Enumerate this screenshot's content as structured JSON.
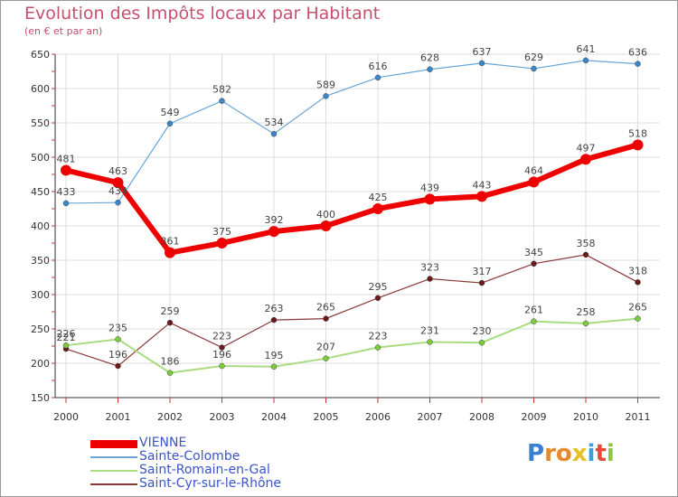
{
  "title": "Evolution des Impôts locaux par Habitant",
  "subtitle": "(en € et par an)",
  "logo": {
    "letters": [
      "P",
      "r",
      "o",
      "x",
      "i",
      "t",
      "i"
    ],
    "colors": [
      "#3a7fd0",
      "#e8882a",
      "#e8882a",
      "#e8c020",
      "#3aa0d8",
      "#e84a3a",
      "#8cc63e"
    ]
  },
  "chart_data": {
    "type": "line",
    "title": "Evolution des Impôts locaux par Habitant",
    "subtitle": "(en € et par an)",
    "x": [
      "2000",
      "2001",
      "2002",
      "2003",
      "2004",
      "2005",
      "2006",
      "2007",
      "2008",
      "2009",
      "2010",
      "2011"
    ],
    "ylim": [
      150,
      650
    ],
    "yticks": [
      "150",
      "200",
      "250",
      "300",
      "350",
      "400",
      "450",
      "500",
      "550",
      "600",
      "650"
    ],
    "grid": true,
    "legend_position": "bottom-left",
    "series": [
      {
        "name": "VIENNE",
        "values": [
          481,
          463,
          361,
          375,
          392,
          400,
          425,
          439,
          443,
          464,
          497,
          518
        ],
        "color": "#ee0000",
        "marker_color": "#ee0000"
      },
      {
        "name": "Sainte-Colombe",
        "values": [
          433,
          434,
          549,
          582,
          534,
          589,
          616,
          628,
          637,
          629,
          641,
          636
        ],
        "color": "#6aa5d6",
        "marker_color": "#3c86c8"
      },
      {
        "name": "Saint-Romain-en-Gal",
        "values": [
          226,
          235,
          186,
          196,
          195,
          207,
          223,
          231,
          230,
          261,
          258,
          265
        ],
        "color": "#a8dc80",
        "marker_color": "#7ccc3c"
      },
      {
        "name": "Saint-Cyr-sur-le-Rhône",
        "values": [
          221,
          196,
          259,
          223,
          263,
          265,
          295,
          323,
          317,
          345,
          358,
          318
        ],
        "color": "#8a3838",
        "marker_color": "#6a1a1a"
      }
    ],
    "labels": {
      "VIENNE": [
        "481",
        "463",
        "361",
        "375",
        "392",
        "400",
        "425",
        "439",
        "443",
        "464",
        "497",
        "518"
      ],
      "Sainte-Colombe": [
        "433",
        "434",
        "549",
        "582",
        "534",
        "589",
        "616",
        "628",
        "637",
        "629",
        "641",
        "636"
      ],
      "Saint-Romain-en-Gal": [
        "226",
        "235",
        "186",
        "196",
        "195",
        "207",
        "223",
        "231",
        "230",
        "261",
        "258",
        "265"
      ],
      "Saint-Cyr-sur-le-Rhône": [
        "221",
        "196",
        "259",
        "223",
        "263",
        "265",
        "295",
        "323",
        "317",
        "345",
        "358",
        "318"
      ]
    }
  }
}
